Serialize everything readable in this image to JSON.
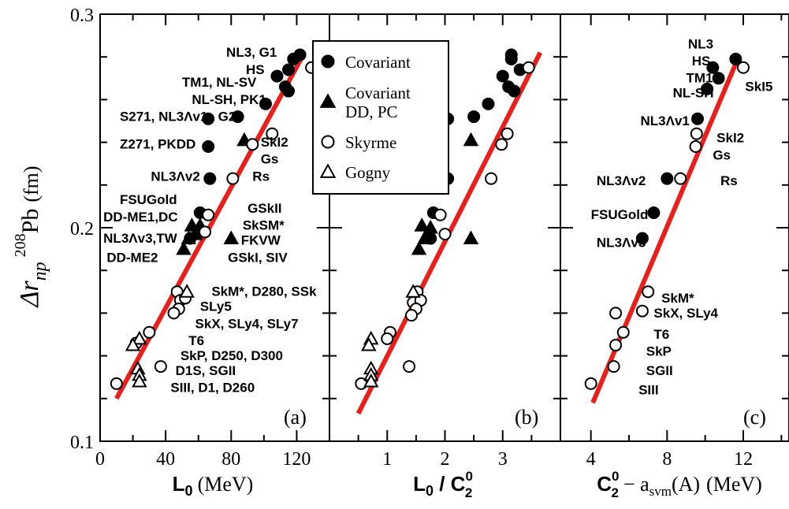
{
  "figure": {
    "ylabel_main": "Δr",
    "ylabel_sub": "np",
    "ylabel_sup": "208",
    "ylabel_iso": "Pb",
    "ylabel_unit": "(fm)"
  },
  "legend": {
    "items": [
      {
        "label_lines": [
          "Covariant"
        ],
        "marker": "circle",
        "filled": true
      },
      {
        "label_lines": [
          "Covariant",
          "DD, PC"
        ],
        "marker": "triangle",
        "filled": true
      },
      {
        "label_lines": [
          "Skyrme"
        ],
        "marker": "circle",
        "filled": false
      },
      {
        "label_lines": [
          "Gogny"
        ],
        "marker": "triangle",
        "filled": false
      }
    ]
  },
  "chart_data": [
    {
      "type": "scatter",
      "panel_label": "(a)",
      "xlabel_main": "L",
      "xlabel_sub": "0",
      "xlabel_unit": "(MeV)",
      "xlim": [
        0,
        140
      ],
      "ylim": [
        0.1,
        0.3
      ],
      "xticks": [
        "0",
        "40",
        "80",
        "120"
      ],
      "xtick_values": [
        0,
        40,
        80,
        120
      ],
      "yticks": [
        "0.1",
        "0.2",
        "0.3"
      ],
      "ytick_values": [
        0.1,
        0.2,
        0.3
      ],
      "fit_line": {
        "x": [
          10,
          124
        ],
        "y": [
          0.12,
          0.281
        ]
      },
      "series": [
        {
          "name": "Covariant",
          "marker": "circle",
          "filled": true,
          "x": [
            122,
            118,
            115,
            108,
            113,
            115,
            101,
            84,
            66,
            66,
            67,
            61,
            55
          ],
          "y": [
            0.281,
            0.279,
            0.274,
            0.271,
            0.266,
            0.264,
            0.258,
            0.252,
            0.251,
            0.238,
            0.223,
            0.207,
            0.195
          ]
        },
        {
          "name": "Covariant DD, PC",
          "marker": "triangle",
          "filled": true,
          "x": [
            88,
            56,
            61,
            58,
            54,
            51,
            80
          ],
          "y": [
            0.241,
            0.201,
            0.201,
            0.197,
            0.195,
            0.19,
            0.195
          ]
        },
        {
          "name": "Skyrme",
          "marker": "circle",
          "filled": false,
          "x": [
            129,
            93,
            105,
            81,
            66,
            64,
            47,
            49,
            52,
            48,
            45,
            30,
            22,
            37,
            10
          ],
          "y": [
            0.275,
            0.239,
            0.244,
            0.223,
            0.206,
            0.198,
            0.17,
            0.166,
            0.167,
            0.162,
            0.16,
            0.151,
            0.146,
            0.135,
            0.127
          ]
        },
        {
          "name": "Gogny",
          "marker": "triangle",
          "filled": false,
          "x": [
            53,
            24,
            20,
            23,
            24,
            24
          ],
          "y": [
            0.17,
            0.148,
            0.145,
            0.134,
            0.131,
            0.128
          ]
        }
      ],
      "annotations": [
        {
          "text": "NL3, G1",
          "x": 77,
          "y": 0.28
        },
        {
          "text": "HS",
          "x": 89,
          "y": 0.272
        },
        {
          "text": "TM1, NL-SV",
          "x": 50,
          "y": 0.266
        },
        {
          "text": "NL-SH, PK1",
          "x": 56,
          "y": 0.258
        },
        {
          "text": "G2",
          "x": 72,
          "y": 0.25
        },
        {
          "text": "S271, NL3Λv1",
          "x": 12,
          "y": 0.25
        },
        {
          "text": "Z271, PKDD",
          "x": 12,
          "y": 0.237
        },
        {
          "text": "NL3Λv2",
          "x": 31,
          "y": 0.222
        },
        {
          "text": "Rs",
          "x": 93,
          "y": 0.222
        },
        {
          "text": "SkI2",
          "x": 98,
          "y": 0.238
        },
        {
          "text": "Gs",
          "x": 98,
          "y": 0.23
        },
        {
          "text": "FSUGold",
          "x": 12,
          "y": 0.211
        },
        {
          "text": "DD-ME1,DC",
          "x": 2,
          "y": 0.203
        },
        {
          "text": "GSkII",
          "x": 90,
          "y": 0.207
        },
        {
          "text": "SkSM*",
          "x": 87,
          "y": 0.199
        },
        {
          "text": "NL3Λv3,TW",
          "x": 2,
          "y": 0.193
        },
        {
          "text": "FKVW",
          "x": 86,
          "y": 0.192
        },
        {
          "text": "DD-ME2",
          "x": 4,
          "y": 0.184
        },
        {
          "text": "GSkI, SIV",
          "x": 78,
          "y": 0.184
        },
        {
          "text": "SkM*, D280, SSk",
          "x": 68,
          "y": 0.168
        },
        {
          "text": "SLy5",
          "x": 61,
          "y": 0.161
        },
        {
          "text": "SkX, SLy4, SLy7",
          "x": 58,
          "y": 0.153
        },
        {
          "text": "T6",
          "x": 54,
          "y": 0.145
        },
        {
          "text": "SkP, D250, D300",
          "x": 49,
          "y": 0.138
        },
        {
          "text": "D1S, SGII",
          "x": 46,
          "y": 0.131
        },
        {
          "text": "SIII, D1, D260",
          "x": 43,
          "y": 0.123
        }
      ]
    },
    {
      "type": "scatter",
      "panel_label": "(b)",
      "xlabel_main": "L",
      "xlabel_sub": "0",
      "xlabel_den": "C",
      "xlabel_den_sup": "0",
      "xlabel_den_sub": "2",
      "xlim": [
        0,
        4
      ],
      "ylim": [
        0.1,
        0.3
      ],
      "xticks": [
        "1",
        "2",
        "3"
      ],
      "xtick_values": [
        1,
        2,
        3
      ],
      "fit_line": {
        "x": [
          0.5,
          3.65
        ],
        "y": [
          0.113,
          0.282
        ]
      },
      "series": [
        {
          "name": "Covariant",
          "marker": "circle",
          "filled": true,
          "x": [
            3.15,
            3.15,
            3.3,
            3.0,
            3.1,
            3.2,
            2.75,
            2.05,
            2.5,
            1.85,
            2.05,
            1.8,
            1.75
          ],
          "y": [
            0.281,
            0.279,
            0.274,
            0.271,
            0.266,
            0.264,
            0.258,
            0.251,
            0.252,
            0.238,
            0.223,
            0.207,
            0.195
          ]
        },
        {
          "name": "Covariant DD, PC",
          "marker": "triangle",
          "filled": true,
          "x": [
            2.45,
            1.6,
            1.75,
            1.7,
            1.65,
            1.55,
            2.45
          ],
          "y": [
            0.241,
            0.201,
            0.2,
            0.197,
            0.195,
            0.19,
            0.195
          ]
        },
        {
          "name": "Skyrme",
          "marker": "circle",
          "filled": false,
          "x": [
            3.45,
            2.98,
            3.08,
            2.8,
            1.92,
            2.0,
            1.52,
            1.45,
            1.58,
            1.5,
            1.42,
            1.05,
            1.0,
            1.38,
            0.55
          ],
          "y": [
            0.275,
            0.239,
            0.244,
            0.223,
            0.206,
            0.197,
            0.17,
            0.165,
            0.166,
            0.162,
            0.159,
            0.151,
            0.148,
            0.135,
            0.127
          ]
        },
        {
          "name": "Gogny",
          "marker": "triangle",
          "filled": false,
          "x": [
            1.45,
            0.72,
            0.68,
            0.72,
            0.72,
            0.72
          ],
          "y": [
            0.17,
            0.148,
            0.145,
            0.134,
            0.131,
            0.128
          ]
        }
      ],
      "annotations": []
    },
    {
      "type": "scatter",
      "panel_label": "(c)",
      "xlabel_main": "C",
      "xlabel_sup": "0",
      "xlabel_sub": "2",
      "xlabel_rest": "− a",
      "xlabel_rest_sub": "svm",
      "xlabel_tail": "(A)",
      "xlabel_unit": "(MeV)",
      "xlim": [
        2.4,
        14.4
      ],
      "ylim": [
        0.1,
        0.3
      ],
      "xticks": [
        "4",
        "8",
        "12"
      ],
      "xtick_values": [
        4,
        8,
        12
      ],
      "fit_line": {
        "x": [
          4.1,
          11.8
        ],
        "y": [
          0.118,
          0.281
        ]
      },
      "series": [
        {
          "name": "Covariant",
          "marker": "circle",
          "filled": true,
          "x": [
            11.6,
            10.4,
            10.7,
            10.1,
            9.6,
            8.0,
            7.3,
            6.7
          ],
          "y": [
            0.279,
            0.275,
            0.27,
            0.265,
            0.251,
            0.223,
            0.207,
            0.195
          ]
        },
        {
          "name": "Skyrme",
          "marker": "circle",
          "filled": false,
          "x": [
            12.0,
            9.55,
            9.5,
            8.7,
            7.0,
            5.3,
            6.7,
            5.7,
            5.3,
            5.2,
            4.0
          ],
          "y": [
            0.275,
            0.244,
            0.238,
            0.223,
            0.17,
            0.16,
            0.161,
            0.151,
            0.145,
            0.135,
            0.127
          ]
        }
      ],
      "annotations": [
        {
          "text": "NL3",
          "x": 9.1,
          "y": 0.284
        },
        {
          "text": "HS",
          "x": 9.3,
          "y": 0.276
        },
        {
          "text": "TM1",
          "x": 9.0,
          "y": 0.268
        },
        {
          "text": "NL-SH",
          "x": 8.3,
          "y": 0.261
        },
        {
          "text": "SkI5",
          "x": 12.1,
          "y": 0.264
        },
        {
          "text": "NL3Λv1",
          "x": 6.6,
          "y": 0.248
        },
        {
          "text": "SkI2",
          "x": 10.6,
          "y": 0.24
        },
        {
          "text": "Gs",
          "x": 10.4,
          "y": 0.232
        },
        {
          "text": "NL3Λv2",
          "x": 4.3,
          "y": 0.22
        },
        {
          "text": "Rs",
          "x": 10.8,
          "y": 0.22
        },
        {
          "text": "FSUGold",
          "x": 4.0,
          "y": 0.204
        },
        {
          "text": "NL3Λv3",
          "x": 4.3,
          "y": 0.191
        },
        {
          "text": "SkM*",
          "x": 7.7,
          "y": 0.165
        },
        {
          "text": "SkX, SLy4",
          "x": 7.3,
          "y": 0.158
        },
        {
          "text": "T6",
          "x": 7.3,
          "y": 0.148
        },
        {
          "text": "SkP",
          "x": 6.9,
          "y": 0.14
        },
        {
          "text": "SGII",
          "x": 6.9,
          "y": 0.131
        },
        {
          "text": "SIII",
          "x": 6.5,
          "y": 0.122
        }
      ]
    }
  ]
}
